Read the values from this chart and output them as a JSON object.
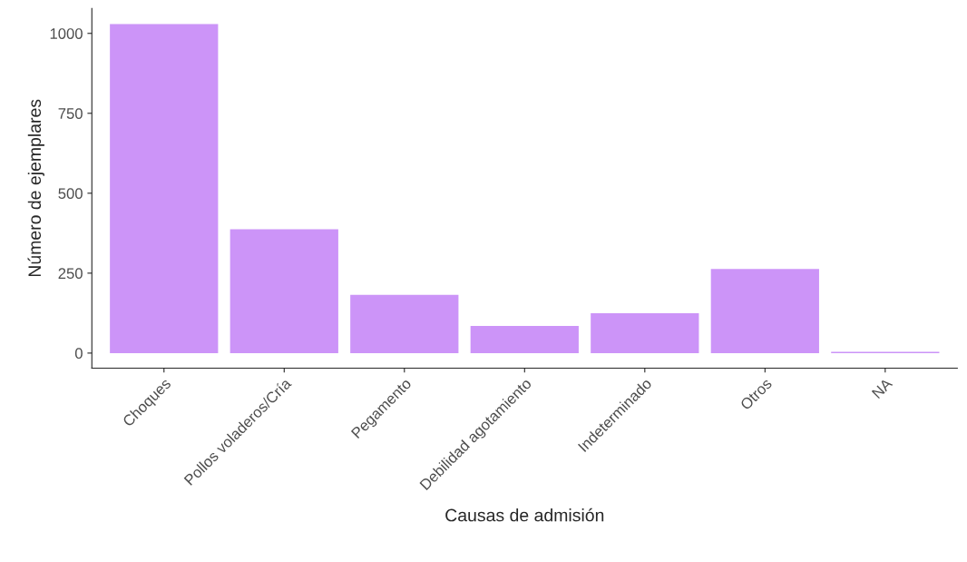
{
  "chart_data": {
    "type": "bar",
    "xlabel": "Causas de admisión",
    "ylabel": "Número de ejemplares",
    "categories": [
      "Choques",
      "Pollos voladeros/Cría",
      "Pegamento",
      "Debilidad agotamiento",
      "Indeterminado",
      "Otros",
      "NA"
    ],
    "values": [
      1029,
      387,
      182,
      85,
      125,
      263,
      4
    ],
    "color": "#cc94f8",
    "ylim": [
      -47,
      1078
    ],
    "yticks": [
      0,
      250,
      500,
      750,
      1000
    ],
    "grid": false,
    "legend": false
  }
}
